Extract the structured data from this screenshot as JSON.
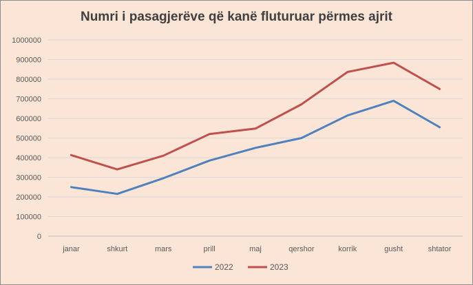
{
  "chart_data": {
    "type": "line",
    "title": "Numri i pasagjerëve që kanë fluturuar përmes ajrit",
    "xlabel": "",
    "ylabel": "",
    "categories": [
      "janar",
      "shkurt",
      "mars",
      "prill",
      "maj",
      "qershor",
      "korrik",
      "gusht",
      "shtator"
    ],
    "series": [
      {
        "name": "2022",
        "color": "#4f81bd",
        "values": [
          250000,
          215000,
          295000,
          385000,
          450000,
          500000,
          615000,
          690000,
          555000
        ]
      },
      {
        "name": "2023",
        "color": "#c0504d",
        "values": [
          413000,
          340000,
          410000,
          520000,
          548000,
          672000,
          837000,
          884000,
          750000
        ]
      }
    ],
    "ylim": [
      0,
      1000000
    ],
    "yticks": [
      "0",
      "100000",
      "200000",
      "300000",
      "400000",
      "500000",
      "600000",
      "700000",
      "800000",
      "900000",
      "1000000"
    ],
    "grid": "horizontal",
    "legend": "bottom"
  }
}
